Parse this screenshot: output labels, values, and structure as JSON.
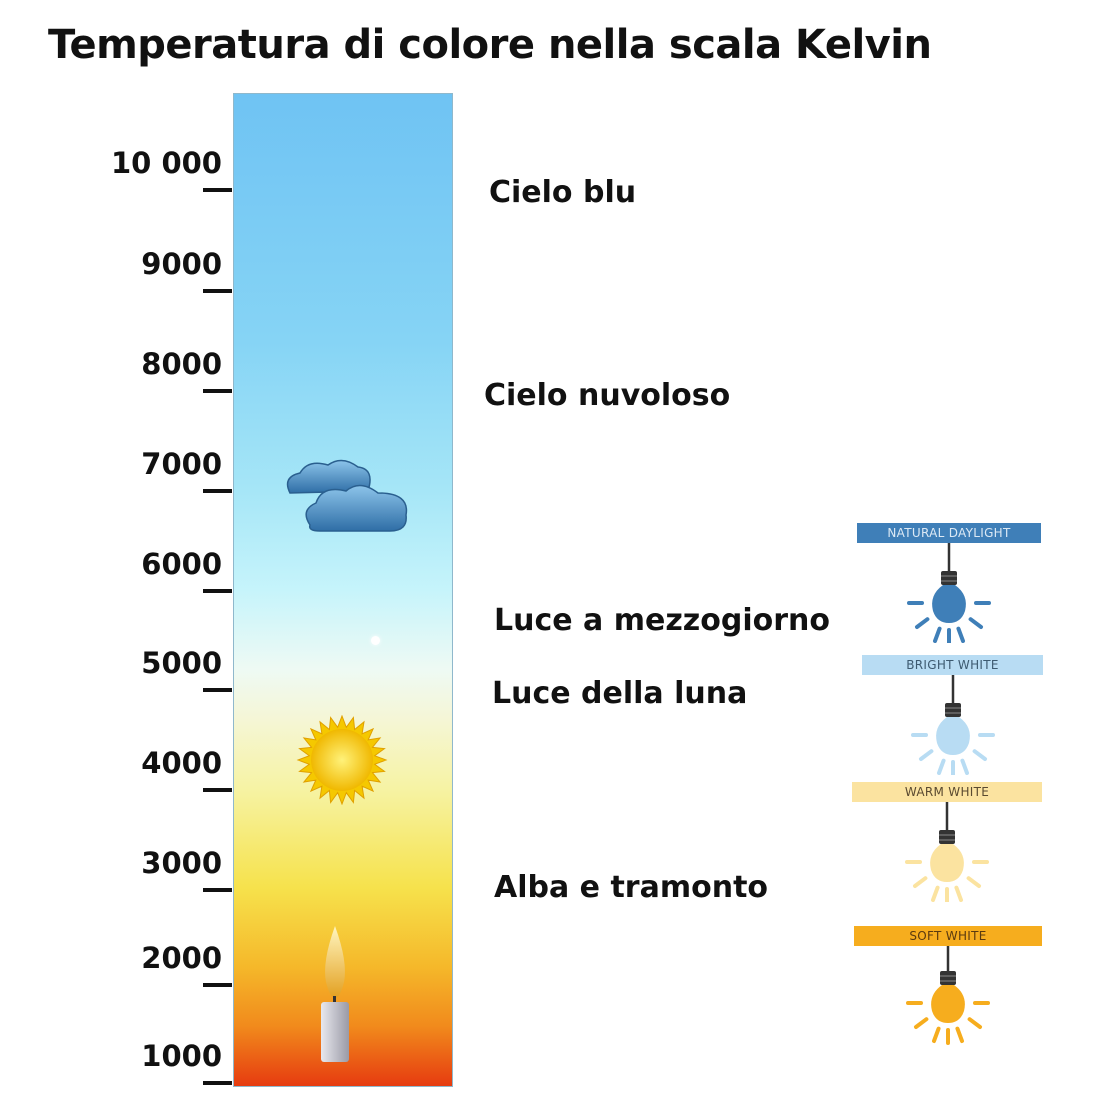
{
  "title": "Temperatura di colore nella scala Kelvin",
  "scale": {
    "ticks": [
      "10 000",
      "9000",
      "8000",
      "7000",
      "6000",
      "5000",
      "4000",
      "3000",
      "2000",
      "1000"
    ],
    "unit": "Kelvin"
  },
  "descriptions": [
    "Cielo blu",
    "Cielo nuvoloso",
    "Luce a mezzogiorno",
    "Luce della luna",
    "Alba e tramonto"
  ],
  "bulbs": [
    {
      "label": "NATURAL DAYLIGHT",
      "color": "#3f7fb8",
      "text_color": "#dce9f5"
    },
    {
      "label": "BRIGHT WHITE",
      "color": "#b8dcf3",
      "text_color": "#3d5a70"
    },
    {
      "label": "WARM WHITE",
      "color": "#fbe3a0",
      "text_color": "#5a4a30"
    },
    {
      "label": "SOFT WHITE",
      "color": "#f6ad1e",
      "text_color": "#5a3a10"
    }
  ],
  "icons": [
    "cloud-icon",
    "sun-icon",
    "candle-icon",
    "light-bulb-icon"
  ]
}
